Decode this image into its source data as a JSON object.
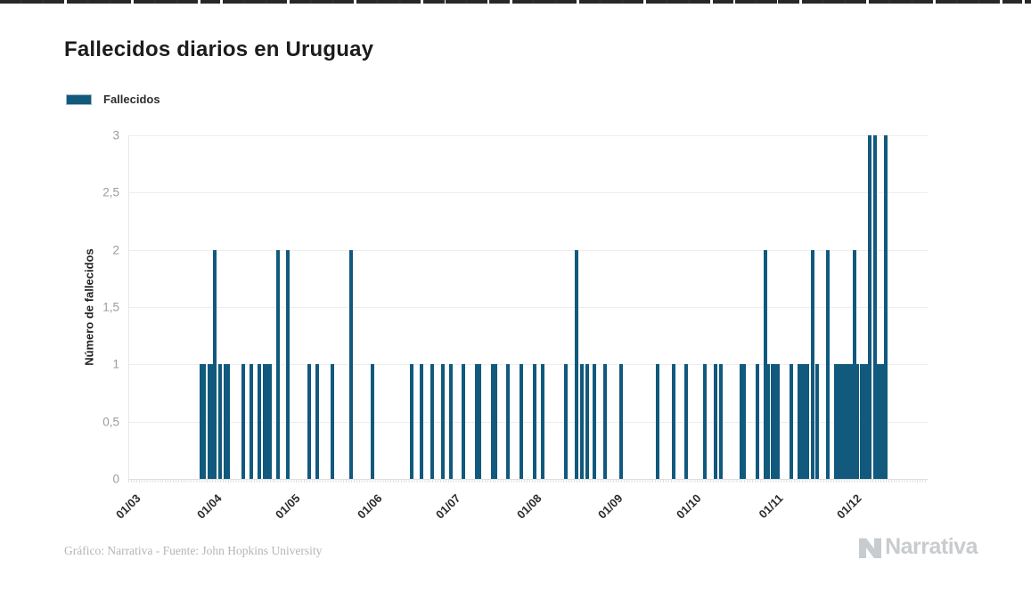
{
  "page": {
    "title": "Fallecidos diarios en Uruguay"
  },
  "legend": {
    "label": "Fallecidos"
  },
  "footer": {
    "credit": "Gráfico: Narrativa - Fuente: John Hopkins University",
    "brand": "Narrativa"
  },
  "chart_data": {
    "type": "bar",
    "title": "Fallecidos diarios en Uruguay",
    "series_name": "Fallecidos",
    "xlabel": "",
    "ylabel": "Número de fallecidos",
    "ylim": [
      0,
      3
    ],
    "bar_color": "#11597d",
    "grid": "horizontal-only",
    "legend_position": "top-left",
    "yticks": [
      {
        "value": 0,
        "label": "0"
      },
      {
        "value": 0.5,
        "label": "0,5"
      },
      {
        "value": 1,
        "label": "1"
      },
      {
        "value": 1.5,
        "label": "1,5"
      },
      {
        "value": 2,
        "label": "2"
      },
      {
        "value": 2.5,
        "label": "2,5"
      },
      {
        "value": 3,
        "label": "3"
      }
    ],
    "x_domain": [
      "2020-03-01",
      "2020-12-31"
    ],
    "x_ticks": [
      {
        "date": "2020-03-01",
        "label": "01/03"
      },
      {
        "date": "2020-04-01",
        "label": "01/04"
      },
      {
        "date": "2020-05-01",
        "label": "01/05"
      },
      {
        "date": "2020-06-01",
        "label": "01/06"
      },
      {
        "date": "2020-07-01",
        "label": "01/07"
      },
      {
        "date": "2020-08-01",
        "label": "01/08"
      },
      {
        "date": "2020-09-01",
        "label": "01/09"
      },
      {
        "date": "2020-10-01",
        "label": "01/10"
      },
      {
        "date": "2020-11-01",
        "label": "01/11"
      },
      {
        "date": "2020-12-01",
        "label": "01/12"
      }
    ],
    "points": [
      {
        "date": "2020-03-29",
        "value": 1
      },
      {
        "date": "2020-03-30",
        "value": 1
      },
      {
        "date": "2020-04-01",
        "value": 1
      },
      {
        "date": "2020-04-02",
        "value": 1
      },
      {
        "date": "2020-04-03",
        "value": 2
      },
      {
        "date": "2020-04-05",
        "value": 1
      },
      {
        "date": "2020-04-07",
        "value": 1
      },
      {
        "date": "2020-04-08",
        "value": 1
      },
      {
        "date": "2020-04-14",
        "value": 1
      },
      {
        "date": "2020-04-17",
        "value": 1
      },
      {
        "date": "2020-04-20",
        "value": 1
      },
      {
        "date": "2020-04-22",
        "value": 1
      },
      {
        "date": "2020-04-23",
        "value": 1
      },
      {
        "date": "2020-04-24",
        "value": 1
      },
      {
        "date": "2020-04-27",
        "value": 2
      },
      {
        "date": "2020-05-01",
        "value": 2
      },
      {
        "date": "2020-05-09",
        "value": 1
      },
      {
        "date": "2020-05-12",
        "value": 1
      },
      {
        "date": "2020-05-18",
        "value": 1
      },
      {
        "date": "2020-05-25",
        "value": 2
      },
      {
        "date": "2020-06-02",
        "value": 1
      },
      {
        "date": "2020-06-17",
        "value": 1
      },
      {
        "date": "2020-06-21",
        "value": 1
      },
      {
        "date": "2020-06-25",
        "value": 1
      },
      {
        "date": "2020-06-29",
        "value": 1
      },
      {
        "date": "2020-07-02",
        "value": 1
      },
      {
        "date": "2020-07-07",
        "value": 1
      },
      {
        "date": "2020-07-12",
        "value": 1
      },
      {
        "date": "2020-07-13",
        "value": 1
      },
      {
        "date": "2020-07-18",
        "value": 1
      },
      {
        "date": "2020-07-19",
        "value": 1
      },
      {
        "date": "2020-07-24",
        "value": 1
      },
      {
        "date": "2020-07-29",
        "value": 1
      },
      {
        "date": "2020-08-03",
        "value": 1
      },
      {
        "date": "2020-08-06",
        "value": 1
      },
      {
        "date": "2020-08-15",
        "value": 1
      },
      {
        "date": "2020-08-19",
        "value": 2
      },
      {
        "date": "2020-08-21",
        "value": 1
      },
      {
        "date": "2020-08-23",
        "value": 1
      },
      {
        "date": "2020-08-26",
        "value": 1
      },
      {
        "date": "2020-08-30",
        "value": 1
      },
      {
        "date": "2020-09-05",
        "value": 1
      },
      {
        "date": "2020-09-19",
        "value": 1
      },
      {
        "date": "2020-09-25",
        "value": 1
      },
      {
        "date": "2020-09-30",
        "value": 1
      },
      {
        "date": "2020-10-07",
        "value": 1
      },
      {
        "date": "2020-10-11",
        "value": 1
      },
      {
        "date": "2020-10-13",
        "value": 1
      },
      {
        "date": "2020-10-21",
        "value": 1
      },
      {
        "date": "2020-10-22",
        "value": 1
      },
      {
        "date": "2020-10-27",
        "value": 1
      },
      {
        "date": "2020-10-30",
        "value": 2
      },
      {
        "date": "2020-10-31",
        "value": 1
      },
      {
        "date": "2020-11-02",
        "value": 1
      },
      {
        "date": "2020-11-03",
        "value": 1
      },
      {
        "date": "2020-11-04",
        "value": 1
      },
      {
        "date": "2020-11-09",
        "value": 1
      },
      {
        "date": "2020-11-12",
        "value": 1
      },
      {
        "date": "2020-11-13",
        "value": 1
      },
      {
        "date": "2020-11-14",
        "value": 1
      },
      {
        "date": "2020-11-15",
        "value": 1
      },
      {
        "date": "2020-11-17",
        "value": 2
      },
      {
        "date": "2020-11-19",
        "value": 1
      },
      {
        "date": "2020-11-23",
        "value": 2
      },
      {
        "date": "2020-11-26",
        "value": 1
      },
      {
        "date": "2020-11-27",
        "value": 1
      },
      {
        "date": "2020-11-28",
        "value": 1
      },
      {
        "date": "2020-11-29",
        "value": 1
      },
      {
        "date": "2020-11-30",
        "value": 1
      },
      {
        "date": "2020-12-01",
        "value": 1
      },
      {
        "date": "2020-12-02",
        "value": 1
      },
      {
        "date": "2020-12-03",
        "value": 2
      },
      {
        "date": "2020-12-04",
        "value": 1
      },
      {
        "date": "2020-12-06",
        "value": 1
      },
      {
        "date": "2020-12-07",
        "value": 1
      },
      {
        "date": "2020-12-08",
        "value": 1
      },
      {
        "date": "2020-12-09",
        "value": 3
      },
      {
        "date": "2020-12-11",
        "value": 3
      },
      {
        "date": "2020-12-12",
        "value": 1
      },
      {
        "date": "2020-12-13",
        "value": 1
      },
      {
        "date": "2020-12-14",
        "value": 1
      },
      {
        "date": "2020-12-15",
        "value": 3
      }
    ]
  }
}
